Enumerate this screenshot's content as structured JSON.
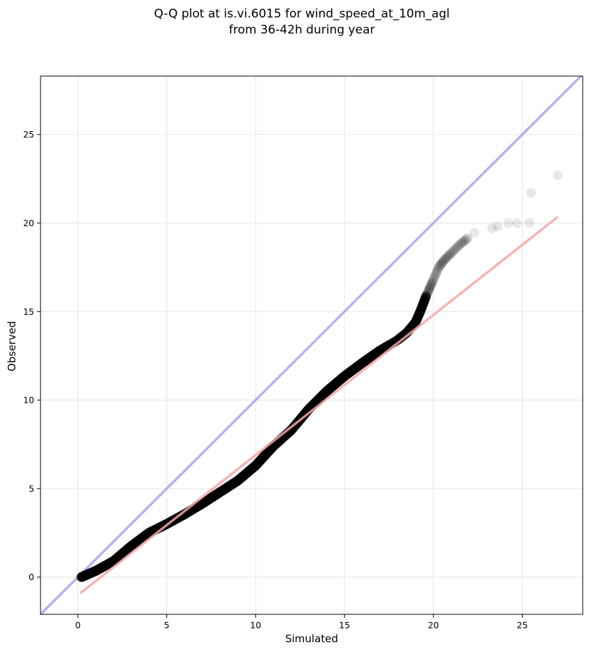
{
  "chart_data": {
    "type": "scatter",
    "title_line1": "Q-Q plot at is.vi.6015 for wind_speed_at_10m_agl",
    "title_line2": "from 36-42h during year",
    "xlabel": "Simulated",
    "ylabel": "Observed",
    "xlim": [
      -2.1,
      28.4
    ],
    "ylim": [
      -2.1,
      28.3
    ],
    "x_ticks": [
      0,
      5,
      10,
      15,
      20,
      25
    ],
    "y_ticks": [
      0,
      5,
      10,
      15,
      20,
      25
    ],
    "grid": true,
    "colors": {
      "points": "#000000",
      "identity_line": "#aaaaee",
      "fit_line": "#f5a6a6",
      "grid": "#e8e8e8",
      "axes": "#000000"
    },
    "identity_line": {
      "x": [
        -2.1,
        28.4
      ],
      "y": [
        -2.1,
        28.4
      ]
    },
    "fit_line": {
      "x": [
        0.15,
        27.0
      ],
      "y": [
        -0.9,
        20.35
      ]
    },
    "quantile_curve": {
      "x": [
        0.2,
        1,
        2,
        3,
        4,
        5,
        6,
        7,
        8,
        9,
        10,
        11,
        12,
        13,
        14,
        15,
        16,
        17,
        18,
        18.5,
        19,
        19.3,
        19.6,
        20,
        20.3,
        20.6,
        21,
        21.5,
        22
      ],
      "y": [
        0,
        0.35,
        0.9,
        1.75,
        2.5,
        3.0,
        3.55,
        4.15,
        4.8,
        5.45,
        6.3,
        7.4,
        8.3,
        9.5,
        10.5,
        11.35,
        12.1,
        12.8,
        13.4,
        13.8,
        14.4,
        15.1,
        15.9,
        16.8,
        17.5,
        17.9,
        18.3,
        18.8,
        19.2
      ]
    },
    "tail_points": {
      "x": [
        22.3,
        23.3,
        23.6,
        24.2,
        24.7,
        25.4,
        25.5,
        27.0
      ],
      "y": [
        19.45,
        19.7,
        19.8,
        20.0,
        20.0,
        20.0,
        21.7,
        22.7
      ]
    }
  }
}
